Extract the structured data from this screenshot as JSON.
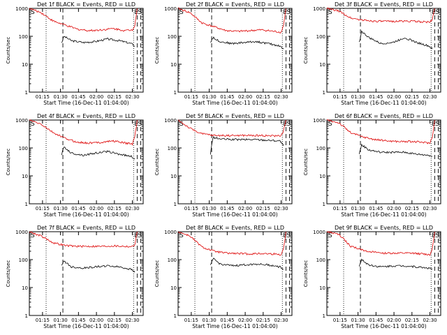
{
  "colors": {
    "events": "#000000",
    "lld": "#dd0000",
    "axis": "#000000",
    "background": "#ffffff"
  },
  "chart_data": [
    {
      "type": "line",
      "title": "Det 1f BLACK = Events, RED = LLD",
      "xlabel": "Start Time (16-Dec-11 01:04:00)",
      "ylabel": "Counts/sec",
      "yscale": "log",
      "ylim": [
        1,
        1000
      ],
      "xtick_labels": [
        "01:15",
        "01:30",
        "01:45",
        "02:00",
        "02:15",
        "02:30"
      ],
      "ytick_labels": [
        "1",
        "10",
        "100",
        "1000"
      ],
      "markers": {
        "s": "S",
        "e": "E",
        "s2": "S"
      },
      "grid": false,
      "series": [
        {
          "name": "Events",
          "color": "#000000",
          "x": [
            27,
            29,
            35,
            45,
            55,
            65,
            75,
            85,
            88
          ],
          "y": [
            60,
            100,
            70,
            60,
            65,
            80,
            70,
            55,
            45
          ]
        },
        {
          "name": "LLD",
          "color": "#dd0000",
          "x": [
            0,
            10,
            20,
            30,
            40,
            50,
            60,
            70,
            80,
            86,
            88,
            90
          ],
          "y": [
            1000,
            700,
            350,
            250,
            180,
            160,
            170,
            190,
            160,
            170,
            250,
            1000
          ]
        }
      ]
    },
    {
      "type": "line",
      "title": "Det 2f BLACK = Events, RED = LLD",
      "xlabel": "Start Time (16-Dec-11 01:04:00)",
      "ylabel": "Counts/sec",
      "yscale": "log",
      "ylim": [
        1,
        1000
      ],
      "xtick_labels": [
        "01:15",
        "01:30",
        "01:45",
        "02:00",
        "02:15",
        "02:30"
      ],
      "ytick_labels": [
        "1",
        "10",
        "100",
        "1000"
      ],
      "markers": {
        "s": "S",
        "e": "E",
        "s2": "S"
      },
      "grid": false,
      "series": [
        {
          "name": "Events",
          "color": "#000000",
          "x": [
            27,
            29,
            35,
            45,
            55,
            65,
            75,
            85,
            88
          ],
          "y": [
            60,
            90,
            65,
            55,
            60,
            65,
            55,
            45,
            35
          ]
        },
        {
          "name": "LLD",
          "color": "#dd0000",
          "x": [
            0,
            10,
            20,
            30,
            40,
            50,
            60,
            70,
            80,
            86,
            88,
            90
          ],
          "y": [
            1000,
            700,
            300,
            220,
            160,
            150,
            160,
            170,
            150,
            140,
            250,
            1000
          ]
        }
      ]
    },
    {
      "type": "line",
      "title": "Det 3f BLACK = Events, RED = LLD",
      "xlabel": "Start Time (16-Dec-11 01:04:00)",
      "ylabel": "Counts/sec",
      "yscale": "log",
      "ylim": [
        1,
        1000
      ],
      "xtick_labels": [
        "01:15",
        "01:30",
        "01:45",
        "02:00",
        "02:15",
        "02:30"
      ],
      "ytick_labels": [
        "1",
        "10",
        "100",
        "1000"
      ],
      "markers": {
        "s": "S",
        "e": "E",
        "s2": "S"
      },
      "grid": false,
      "series": [
        {
          "name": "Events",
          "color": "#000000",
          "x": [
            27,
            29,
            35,
            45,
            55,
            65,
            75,
            85,
            88
          ],
          "y": [
            60,
            150,
            90,
            55,
            60,
            90,
            60,
            45,
            35
          ]
        },
        {
          "name": "LLD",
          "color": "#dd0000",
          "x": [
            0,
            10,
            20,
            30,
            40,
            50,
            60,
            70,
            80,
            86,
            88,
            90
          ],
          "y": [
            1000,
            800,
            450,
            380,
            350,
            340,
            350,
            350,
            330,
            320,
            400,
            1000
          ]
        }
      ]
    },
    {
      "type": "line",
      "title": "Det 4f BLACK = Events, RED = LLD",
      "xlabel": "Start Time (16-Dec-11 01:04:00)",
      "ylabel": "Counts/sec",
      "yscale": "log",
      "ylim": [
        1,
        1000
      ],
      "xtick_labels": [
        "01:15",
        "01:30",
        "01:45",
        "02:00",
        "02:15",
        "02:30"
      ],
      "ytick_labels": [
        "1",
        "10",
        "100",
        "1000"
      ],
      "markers": {
        "s": "S",
        "e": "E",
        "s2": "S"
      },
      "grid": false,
      "series": [
        {
          "name": "Events",
          "color": "#000000",
          "x": [
            27,
            29,
            35,
            45,
            55,
            65,
            75,
            85,
            88
          ],
          "y": [
            60,
            110,
            65,
            55,
            65,
            75,
            60,
            50,
            40
          ]
        },
        {
          "name": "LLD",
          "color": "#dd0000",
          "x": [
            0,
            10,
            20,
            30,
            40,
            50,
            60,
            70,
            80,
            86,
            88,
            90
          ],
          "y": [
            1000,
            700,
            350,
            220,
            160,
            150,
            160,
            180,
            150,
            140,
            250,
            1000
          ]
        }
      ]
    },
    {
      "type": "line",
      "title": "Det 5f BLACK = Events, RED = LLD",
      "xlabel": "Start Time (16-Dec-11 01:04:00)",
      "ylabel": "Counts/sec",
      "yscale": "log",
      "ylim": [
        1,
        1000
      ],
      "xtick_labels": [
        "01:15",
        "01:30",
        "01:45",
        "02:00",
        "02:15",
        "02:30"
      ],
      "ytick_labels": [
        "1",
        "10",
        "100",
        "1000"
      ],
      "markers": {
        "s": "S",
        "e": "E",
        "s2": "S"
      },
      "grid": false,
      "series": [
        {
          "name": "Events",
          "color": "#000000",
          "x": [
            27,
            29,
            35,
            45,
            55,
            65,
            75,
            85,
            88
          ],
          "y": [
            60,
            240,
            210,
            200,
            200,
            200,
            190,
            180,
            120
          ]
        },
        {
          "name": "LLD",
          "color": "#dd0000",
          "x": [
            0,
            10,
            20,
            30,
            40,
            50,
            60,
            70,
            80,
            86,
            88,
            90
          ],
          "y": [
            1000,
            500,
            320,
            280,
            280,
            280,
            280,
            280,
            270,
            280,
            400,
            1000
          ]
        }
      ]
    },
    {
      "type": "line",
      "title": "Det 6f BLACK = Events, RED = LLD",
      "xlabel": "Start Time (16-Dec-11 01:04:00)",
      "ylabel": "Counts/sec",
      "yscale": "log",
      "ylim": [
        1,
        1000
      ],
      "xtick_labels": [
        "01:15",
        "01:30",
        "01:45",
        "02:00",
        "02:15",
        "02:30"
      ],
      "ytick_labels": [
        "1",
        "10",
        "100",
        "1000"
      ],
      "markers": {
        "s": "S",
        "e": "E",
        "s2": "S"
      },
      "grid": false,
      "series": [
        {
          "name": "Events",
          "color": "#000000",
          "x": [
            27,
            29,
            35,
            45,
            55,
            65,
            75,
            85,
            88
          ],
          "y": [
            60,
            130,
            85,
            70,
            70,
            70,
            60,
            55,
            50
          ]
        },
        {
          "name": "LLD",
          "color": "#dd0000",
          "x": [
            0,
            10,
            20,
            30,
            40,
            50,
            60,
            70,
            80,
            86,
            88,
            90
          ],
          "y": [
            1000,
            800,
            350,
            250,
            200,
            180,
            170,
            170,
            160,
            150,
            250,
            1000
          ]
        }
      ]
    },
    {
      "type": "line",
      "title": "Det 7f BLACK = Events, RED = LLD",
      "xlabel": "Start Time (16-Dec-11 01:04:00)",
      "ylabel": "Counts/sec",
      "yscale": "log",
      "ylim": [
        1,
        1000
      ],
      "xtick_labels": [
        "01:15",
        "01:30",
        "01:45",
        "02:00",
        "02:15",
        "02:30"
      ],
      "ytick_labels": [
        "1",
        "10",
        "100",
        "1000"
      ],
      "markers": {
        "s": "S",
        "e": "E",
        "s2": "S"
      },
      "grid": false,
      "series": [
        {
          "name": "Events",
          "color": "#000000",
          "x": [
            27,
            29,
            35,
            45,
            55,
            65,
            75,
            85,
            88
          ],
          "y": [
            60,
            90,
            55,
            50,
            55,
            60,
            55,
            45,
            35
          ]
        },
        {
          "name": "LLD",
          "color": "#dd0000",
          "x": [
            0,
            10,
            20,
            30,
            40,
            50,
            60,
            70,
            80,
            86,
            88,
            90
          ],
          "y": [
            1000,
            700,
            400,
            320,
            300,
            300,
            300,
            310,
            300,
            290,
            350,
            1000
          ]
        }
      ]
    },
    {
      "type": "line",
      "title": "Det 8f BLACK = Events, RED = LLD",
      "xlabel": "Start Time (16-Dec-11 01:04:00)",
      "ylabel": "Counts/sec",
      "yscale": "log",
      "ylim": [
        1,
        1000
      ],
      "xtick_labels": [
        "01:15",
        "01:30",
        "01:45",
        "02:00",
        "02:15",
        "02:30"
      ],
      "ytick_labels": [
        "1",
        "10",
        "100",
        "1000"
      ],
      "markers": {
        "s": "S",
        "e": "E",
        "s2": "S"
      },
      "grid": false,
      "series": [
        {
          "name": "Events",
          "color": "#000000",
          "x": [
            27,
            29,
            35,
            45,
            55,
            65,
            75,
            85,
            88
          ],
          "y": [
            60,
            110,
            70,
            60,
            65,
            70,
            65,
            55,
            45
          ]
        },
        {
          "name": "LLD",
          "color": "#dd0000",
          "x": [
            0,
            10,
            20,
            30,
            40,
            50,
            60,
            70,
            80,
            86,
            88,
            90
          ],
          "y": [
            1000,
            700,
            280,
            200,
            170,
            165,
            160,
            165,
            160,
            150,
            250,
            1000
          ]
        }
      ]
    },
    {
      "type": "line",
      "title": "Det 9f BLACK = Events, RED = LLD",
      "xlabel": "Start Time (16-Dec-11 01:04:00)",
      "ylabel": "Counts/sec",
      "yscale": "log",
      "ylim": [
        1,
        1000
      ],
      "xtick_labels": [
        "01:15",
        "01:30",
        "01:45",
        "02:00",
        "02:15",
        "02:30"
      ],
      "ytick_labels": [
        "1",
        "10",
        "100",
        "1000"
      ],
      "markers": {
        "s": "S",
        "e": "E",
        "s2": "S"
      },
      "grid": false,
      "series": [
        {
          "name": "Events",
          "color": "#000000",
          "x": [
            27,
            29,
            35,
            45,
            55,
            65,
            75,
            85,
            88
          ],
          "y": [
            60,
            100,
            65,
            55,
            60,
            60,
            55,
            50,
            45
          ]
        },
        {
          "name": "LLD",
          "color": "#dd0000",
          "x": [
            0,
            10,
            20,
            30,
            40,
            50,
            60,
            70,
            80,
            86,
            88,
            90
          ],
          "y": [
            1000,
            800,
            300,
            220,
            180,
            170,
            170,
            170,
            160,
            150,
            250,
            1000
          ]
        }
      ]
    }
  ]
}
